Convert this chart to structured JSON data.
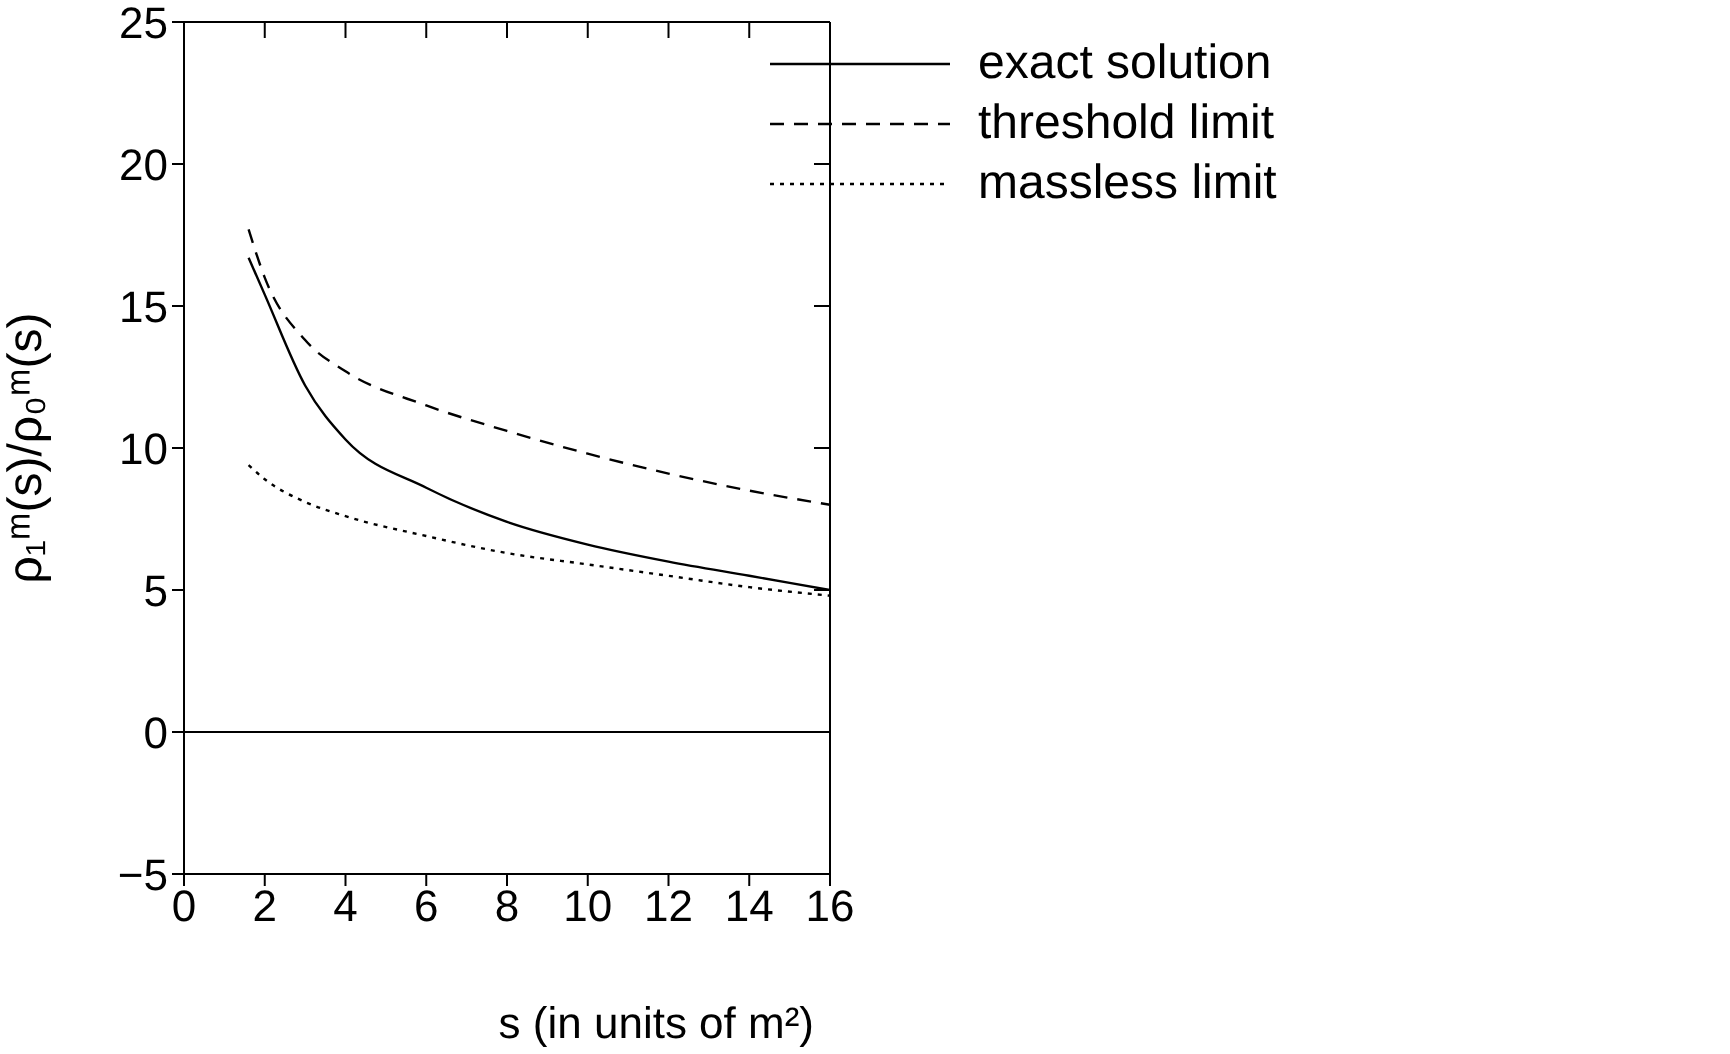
{
  "chart_data": {
    "type": "line",
    "xlabel": "s (in units of m²)",
    "ylabel": "ρ₁ᵐ(s)/ρ₀ᵐ(s)",
    "x": [
      1.6,
      2,
      3,
      4,
      6,
      8,
      10,
      12,
      14,
      16
    ],
    "series": [
      {
        "name": "exact solution",
        "color": "#000000",
        "line_style": "solid",
        "values": [
          16.7,
          15.4,
          12.2,
          10.3,
          8.6,
          7.4,
          6.6,
          6.0,
          5.5,
          5.0
        ]
      },
      {
        "name": "threshold limit",
        "color": "#000000",
        "line_style": "dashed",
        "values": [
          17.7,
          16.0,
          13.8,
          12.7,
          11.5,
          10.6,
          9.8,
          9.1,
          8.5,
          8.0
        ]
      },
      {
        "name": "massless limit",
        "color": "#000000",
        "line_style": "dotted",
        "values": [
          9.4,
          8.9,
          8.1,
          7.6,
          6.9,
          6.3,
          5.9,
          5.5,
          5.1,
          4.8
        ]
      }
    ],
    "xlim": [
      0,
      16
    ],
    "xticks": [
      0,
      2,
      4,
      6,
      8,
      10,
      12,
      14,
      16
    ],
    "ylim": [
      -5,
      25
    ],
    "yticks": [
      -5,
      0,
      5,
      10,
      15,
      20,
      25
    ],
    "ref_lines": [
      {
        "axis": "y",
        "value": 0,
        "color": "#000000"
      }
    ],
    "legend": "top right",
    "marker": "none"
  }
}
